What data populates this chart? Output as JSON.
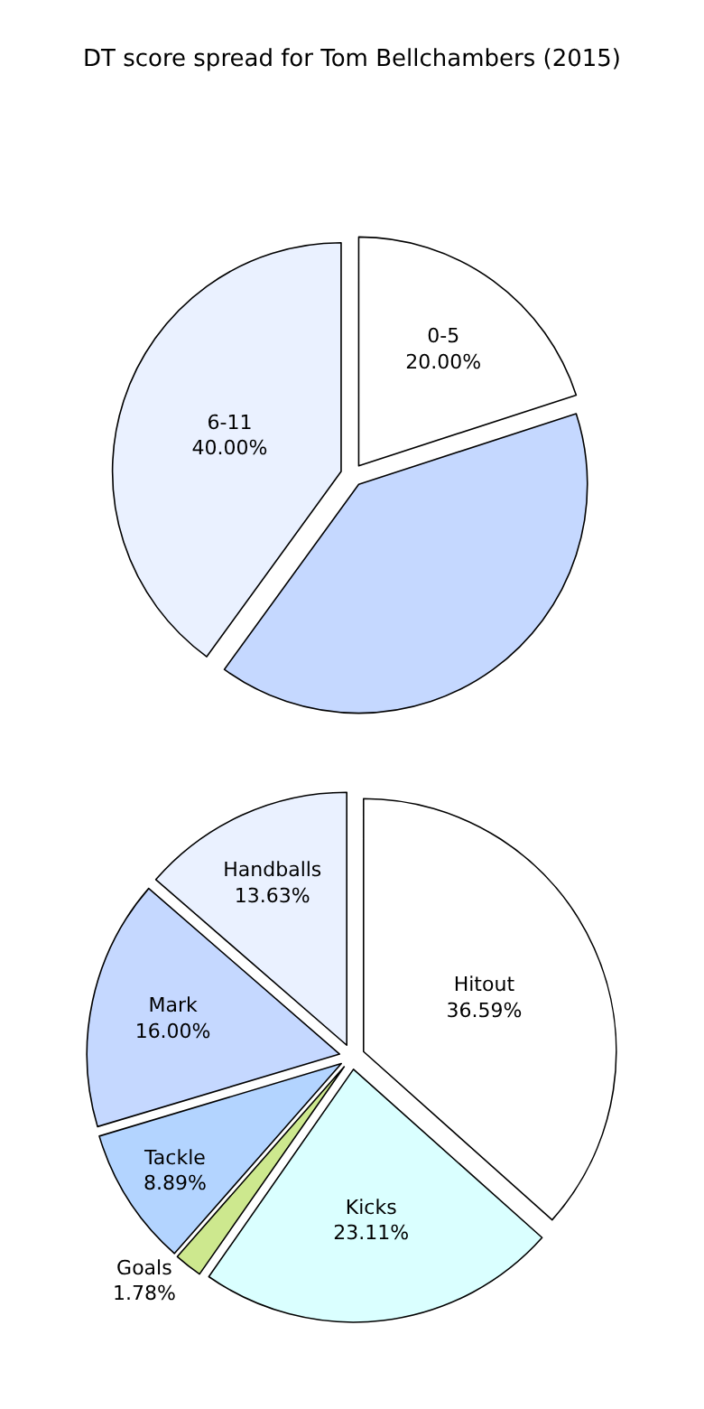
{
  "chart_data": [
    {
      "type": "pie",
      "title": "DT score spread for Tom Bellchambers (2015)",
      "categories": [
        "0-5",
        "6-11",
        null
      ],
      "values": [
        20,
        40,
        40
      ],
      "value_labels": [
        "20.00%",
        "40.00%",
        null
      ],
      "colors": [
        "#ffffff",
        "#eaf1ff",
        "#c5d8ff"
      ],
      "legend": false
    },
    {
      "type": "pie",
      "categories": [
        "Hitout",
        "Handballs",
        "Mark",
        "Tackle",
        "Goals",
        "Kicks"
      ],
      "values": [
        36.59,
        13.63,
        16.0,
        8.89,
        1.78,
        23.11
      ],
      "value_labels": [
        "36.59%",
        "13.63%",
        "16.00%",
        "8.89%",
        "1.78%",
        "23.11%"
      ],
      "colors": [
        "#ffffff",
        "#eaf1ff",
        "#c5d8ff",
        "#b3d4ff",
        "#cde88e",
        "#daffff"
      ],
      "legend": false
    }
  ]
}
